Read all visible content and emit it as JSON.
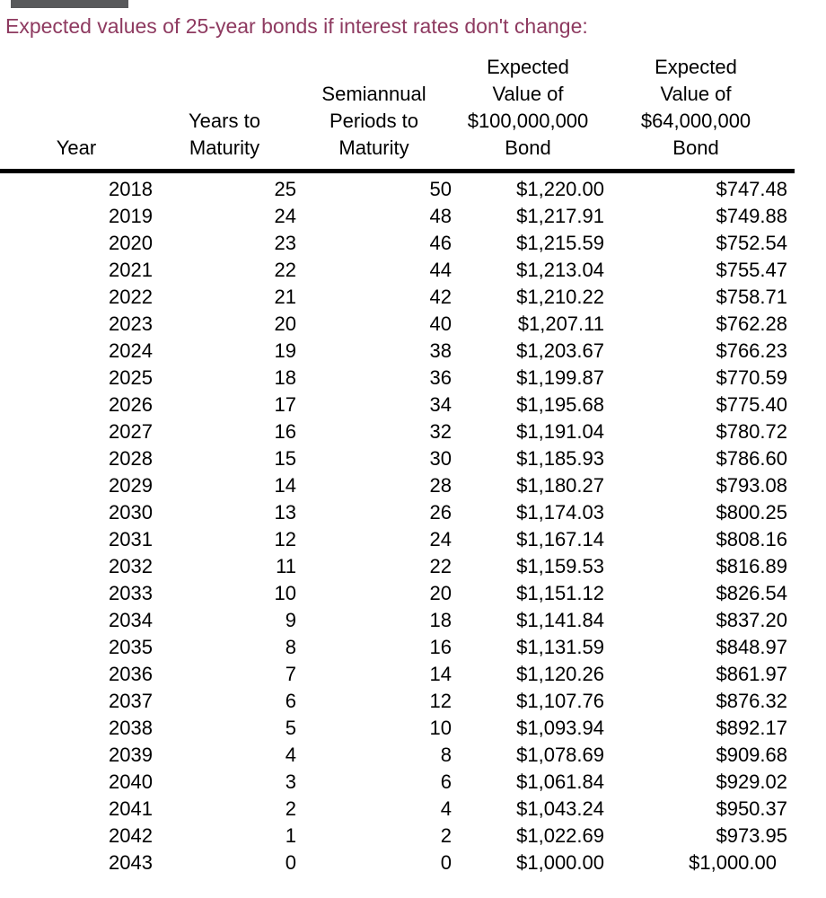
{
  "page": {
    "background_color": "#ffffff",
    "top_bar_color": "#58595b"
  },
  "title": {
    "text": "Expected values of 25-year bonds if interest rates don't change:",
    "color": "#8e3a60"
  },
  "table": {
    "rule_color": "#000000",
    "columns": [
      {
        "key": "year",
        "header": "Year"
      },
      {
        "key": "years_to_maturity",
        "header": "Years to\nMaturity"
      },
      {
        "key": "semiannual_periods_to_maturity",
        "header": "Semiannual\nPeriods to\nMaturity"
      },
      {
        "key": "expected_value_100m_bond",
        "header": "Expected\nValue of\n$100,000,000\nBond"
      },
      {
        "key": "expected_value_64m_bond",
        "header": "Expected\nValue of\n$64,000,000\nBond"
      }
    ],
    "rows": [
      {
        "year": "2018",
        "years_to_maturity": "25",
        "semiannual_periods_to_maturity": "50",
        "expected_value_100m_bond": "$1,220.00",
        "expected_value_64m_bond": "$747.48"
      },
      {
        "year": "2019",
        "years_to_maturity": "24",
        "semiannual_periods_to_maturity": "48",
        "expected_value_100m_bond": "$1,217.91",
        "expected_value_64m_bond": "$749.88"
      },
      {
        "year": "2020",
        "years_to_maturity": "23",
        "semiannual_periods_to_maturity": "46",
        "expected_value_100m_bond": "$1,215.59",
        "expected_value_64m_bond": "$752.54"
      },
      {
        "year": "2021",
        "years_to_maturity": "22",
        "semiannual_periods_to_maturity": "44",
        "expected_value_100m_bond": "$1,213.04",
        "expected_value_64m_bond": "$755.47"
      },
      {
        "year": "2022",
        "years_to_maturity": "21",
        "semiannual_periods_to_maturity": "42",
        "expected_value_100m_bond": "$1,210.22",
        "expected_value_64m_bond": "$758.71"
      },
      {
        "year": "2023",
        "years_to_maturity": "20",
        "semiannual_periods_to_maturity": "40",
        "expected_value_100m_bond": "$1,207.11",
        "expected_value_64m_bond": "$762.28"
      },
      {
        "year": "2024",
        "years_to_maturity": "19",
        "semiannual_periods_to_maturity": "38",
        "expected_value_100m_bond": "$1,203.67",
        "expected_value_64m_bond": "$766.23"
      },
      {
        "year": "2025",
        "years_to_maturity": "18",
        "semiannual_periods_to_maturity": "36",
        "expected_value_100m_bond": "$1,199.87",
        "expected_value_64m_bond": "$770.59"
      },
      {
        "year": "2026",
        "years_to_maturity": "17",
        "semiannual_periods_to_maturity": "34",
        "expected_value_100m_bond": "$1,195.68",
        "expected_value_64m_bond": "$775.40"
      },
      {
        "year": "2027",
        "years_to_maturity": "16",
        "semiannual_periods_to_maturity": "32",
        "expected_value_100m_bond": "$1,191.04",
        "expected_value_64m_bond": "$780.72"
      },
      {
        "year": "2028",
        "years_to_maturity": "15",
        "semiannual_periods_to_maturity": "30",
        "expected_value_100m_bond": "$1,185.93",
        "expected_value_64m_bond": "$786.60"
      },
      {
        "year": "2029",
        "years_to_maturity": "14",
        "semiannual_periods_to_maturity": "28",
        "expected_value_100m_bond": "$1,180.27",
        "expected_value_64m_bond": "$793.08"
      },
      {
        "year": "2030",
        "years_to_maturity": "13",
        "semiannual_periods_to_maturity": "26",
        "expected_value_100m_bond": "$1,174.03",
        "expected_value_64m_bond": "$800.25"
      },
      {
        "year": "2031",
        "years_to_maturity": "12",
        "semiannual_periods_to_maturity": "24",
        "expected_value_100m_bond": "$1,167.14",
        "expected_value_64m_bond": "$808.16"
      },
      {
        "year": "2032",
        "years_to_maturity": "11",
        "semiannual_periods_to_maturity": "22",
        "expected_value_100m_bond": "$1,159.53",
        "expected_value_64m_bond": "$816.89"
      },
      {
        "year": "2033",
        "years_to_maturity": "10",
        "semiannual_periods_to_maturity": "20",
        "expected_value_100m_bond": "$1,151.12",
        "expected_value_64m_bond": "$826.54"
      },
      {
        "year": "2034",
        "years_to_maturity": "9",
        "semiannual_periods_to_maturity": "18",
        "expected_value_100m_bond": "$1,141.84",
        "expected_value_64m_bond": "$837.20"
      },
      {
        "year": "2035",
        "years_to_maturity": "8",
        "semiannual_periods_to_maturity": "16",
        "expected_value_100m_bond": "$1,131.59",
        "expected_value_64m_bond": "$848.97"
      },
      {
        "year": "2036",
        "years_to_maturity": "7",
        "semiannual_periods_to_maturity": "14",
        "expected_value_100m_bond": "$1,120.26",
        "expected_value_64m_bond": "$861.97"
      },
      {
        "year": "2037",
        "years_to_maturity": "6",
        "semiannual_periods_to_maturity": "12",
        "expected_value_100m_bond": "$1,107.76",
        "expected_value_64m_bond": "$876.32"
      },
      {
        "year": "2038",
        "years_to_maturity": "5",
        "semiannual_periods_to_maturity": "10",
        "expected_value_100m_bond": "$1,093.94",
        "expected_value_64m_bond": "$892.17"
      },
      {
        "year": "2039",
        "years_to_maturity": "4",
        "semiannual_periods_to_maturity": "8",
        "expected_value_100m_bond": "$1,078.69",
        "expected_value_64m_bond": "$909.68"
      },
      {
        "year": "2040",
        "years_to_maturity": "3",
        "semiannual_periods_to_maturity": "6",
        "expected_value_100m_bond": "$1,061.84",
        "expected_value_64m_bond": "$929.02"
      },
      {
        "year": "2041",
        "years_to_maturity": "2",
        "semiannual_periods_to_maturity": "4",
        "expected_value_100m_bond": "$1,043.24",
        "expected_value_64m_bond": "$950.37"
      },
      {
        "year": "2042",
        "years_to_maturity": "1",
        "semiannual_periods_to_maturity": "2",
        "expected_value_100m_bond": "$1,022.69",
        "expected_value_64m_bond": "$973.95"
      },
      {
        "year": "2043",
        "years_to_maturity": "0",
        "semiannual_periods_to_maturity": "0",
        "expected_value_100m_bond": "$1,000.00",
        "expected_value_64m_bond": "$1,000.00"
      }
    ]
  }
}
